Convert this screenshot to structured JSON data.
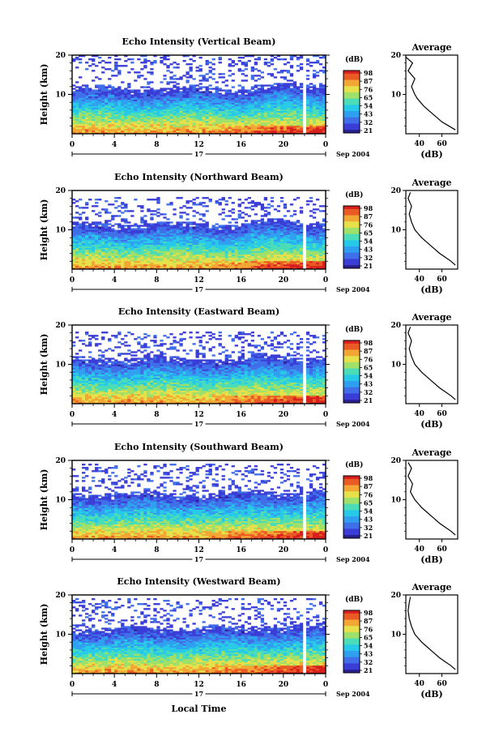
{
  "colors": {
    "colormap": [
      "#2a1f8f",
      "#3a3dd6",
      "#3f6ee8",
      "#2f9ff0",
      "#27c9e8",
      "#4bdcb8",
      "#9fe06a",
      "#e6e04a",
      "#f2a634",
      "#ea5a24",
      "#d81e1e"
    ],
    "axis": "#000000",
    "background": "#ffffff"
  },
  "shared": {
    "x_ticks": [
      "0",
      "4",
      "8",
      "12",
      "16",
      "20",
      "0"
    ],
    "y_ticks": [
      "20",
      "10"
    ],
    "ylabel": "Height (km)",
    "day_label": "17",
    "month_label": "Sep 2004",
    "colorbar_unit": "(dB)",
    "colorbar_ticks": [
      "98",
      "87",
      "76",
      "65",
      "54",
      "43",
      "32",
      "21"
    ],
    "average_title": "Average",
    "average_xticks": [
      "40",
      "60"
    ],
    "average_xlabel": "(dB)",
    "average_yticks": [
      "20",
      "10"
    ],
    "xlabel_bottom": "Local Time"
  },
  "chart_data": [
    {
      "type": "heatmap",
      "title": "Echo Intensity (Vertical Beam)",
      "xlabel": "Local Time",
      "ylabel": "Height (km)",
      "xlim": [
        0,
        24
      ],
      "ylim": [
        0,
        20
      ],
      "clim": [
        21,
        98
      ],
      "gap_hour": 22.0,
      "echo_top_km": 20.0,
      "profile": {
        "x": [
          72,
          66,
          60,
          56,
          52,
          48,
          44,
          41,
          38,
          36,
          33,
          36,
          30,
          34,
          28
        ],
        "y": [
          1,
          2,
          3,
          4,
          5,
          6,
          7,
          8,
          9,
          10,
          12,
          14,
          16,
          18,
          19.5
        ]
      }
    },
    {
      "type": "heatmap",
      "title": "Echo Intensity (Northward Beam)",
      "xlabel": "Local Time",
      "ylabel": "Height (km)",
      "xlim": [
        0,
        24
      ],
      "ylim": [
        0,
        20
      ],
      "clim": [
        21,
        98
      ],
      "gap_hour": 22.0,
      "echo_top_km": 18.5,
      "profile": {
        "x": [
          72,
          68,
          63,
          58,
          54,
          50,
          46,
          42,
          39,
          36,
          33,
          31,
          33,
          30,
          32
        ],
        "y": [
          1,
          2,
          3,
          4,
          5,
          6,
          7,
          8,
          9,
          10,
          12,
          14,
          16,
          18,
          19.5
        ]
      }
    },
    {
      "type": "heatmap",
      "title": "Echo Intensity (Eastward Beam)",
      "xlabel": "Local Time",
      "ylabel": "Height (km)",
      "xlim": [
        0,
        24
      ],
      "ylim": [
        0,
        20
      ],
      "clim": [
        21,
        98
      ],
      "gap_hour": 22.0,
      "echo_top_km": 18.5,
      "profile": {
        "x": [
          72,
          68,
          63,
          58,
          54,
          50,
          46,
          42,
          39,
          36,
          33,
          31,
          33,
          30,
          32
        ],
        "y": [
          1,
          2,
          3,
          4,
          5,
          6,
          7,
          8,
          9,
          10,
          12,
          14,
          16,
          18,
          19.5
        ]
      }
    },
    {
      "type": "heatmap",
      "title": "Echo Intensity (Southward Beam)",
      "xlabel": "Local Time",
      "ylabel": "Height (km)",
      "xlim": [
        0,
        24
      ],
      "ylim": [
        0,
        20
      ],
      "clim": [
        21,
        98
      ],
      "gap_hour": 22.0,
      "echo_top_km": 19.0,
      "profile": {
        "x": [
          72,
          68,
          63,
          58,
          54,
          50,
          46,
          42,
          39,
          36,
          32,
          34,
          30,
          33,
          30
        ],
        "y": [
          1,
          2,
          3,
          4,
          5,
          6,
          7,
          8,
          9,
          10,
          12,
          14,
          16,
          18,
          19.5
        ]
      }
    },
    {
      "type": "heatmap",
      "title": "Echo Intensity (Westward Beam)",
      "xlabel": "Local Time",
      "ylabel": "Height (km)",
      "xlim": [
        0,
        24
      ],
      "ylim": [
        0,
        20
      ],
      "clim": [
        21,
        98
      ],
      "gap_hour": 22.0,
      "echo_top_km": 19.0,
      "profile": {
        "x": [
          72,
          68,
          63,
          58,
          54,
          50,
          46,
          42,
          39,
          36,
          33,
          31,
          30,
          31,
          32
        ],
        "y": [
          1,
          2,
          3,
          4,
          5,
          6,
          7,
          8,
          9,
          10,
          12,
          14,
          16,
          18,
          19.5
        ]
      }
    }
  ]
}
